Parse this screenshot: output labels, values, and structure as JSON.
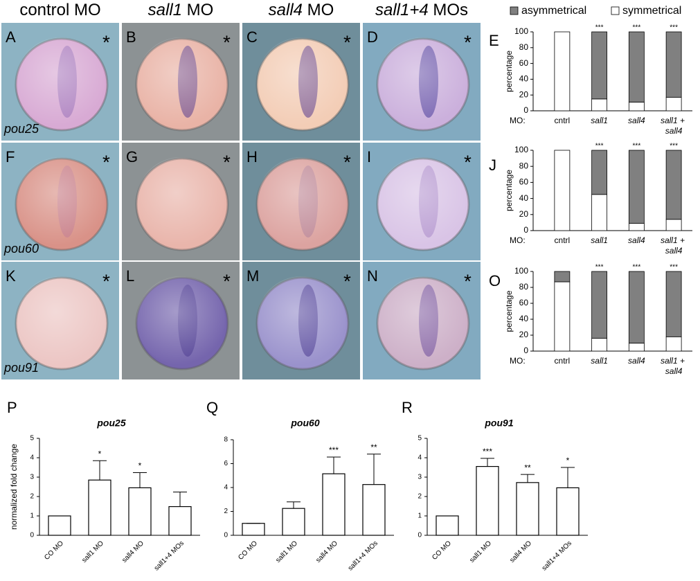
{
  "figure": {
    "columns": [
      {
        "text": "control MO"
      },
      {
        "italic": "sall1",
        "text": " MO"
      },
      {
        "italic": "sall4",
        "text": " MO"
      },
      {
        "italic": "sall1+4",
        "text": " MOs"
      }
    ],
    "rows": [
      {
        "gene": "pou25",
        "panels": [
          "A",
          "B",
          "C",
          "D"
        ]
      },
      {
        "gene": "pou60",
        "panels": [
          "F",
          "G",
          "H",
          "I"
        ]
      },
      {
        "gene": "pou91",
        "panels": [
          "K",
          "L",
          "M",
          "N"
        ]
      }
    ],
    "asterisk": "*"
  },
  "chart_data": [
    {
      "type": "stacked",
      "panel": "E",
      "ylabel": "percentage",
      "category_prefix": "MO:",
      "categories": [
        "cntrl",
        "sall1",
        "sall4",
        "sall1 + sall4"
      ],
      "annotations": [
        null,
        "***",
        "***",
        "***"
      ],
      "series": [
        {
          "name": "symmetrical",
          "color": "#ffffff",
          "values": [
            100,
            15,
            11,
            17
          ]
        },
        {
          "name": "asymmetrical",
          "color": "#808080",
          "values": [
            0,
            85,
            89,
            83
          ]
        }
      ],
      "ylim": [
        0,
        100
      ],
      "yticks": [
        0,
        20,
        40,
        60,
        80,
        100
      ]
    },
    {
      "type": "stacked",
      "panel": "J",
      "ylabel": "percentage",
      "category_prefix": "MO:",
      "categories": [
        "cntrl",
        "sall1",
        "sall4",
        "sall1 + sall4"
      ],
      "annotations": [
        null,
        "***",
        "***",
        "***"
      ],
      "series": [
        {
          "color": "#ffffff",
          "values": [
            100,
            45,
            9,
            14
          ]
        },
        {
          "color": "#808080",
          "values": [
            0,
            55,
            91,
            86
          ]
        }
      ],
      "ylim": [
        0,
        100
      ],
      "yticks": [
        0,
        20,
        40,
        60,
        80,
        100
      ]
    },
    {
      "type": "stacked",
      "panel": "O",
      "ylabel": "percentage",
      "category_prefix": "MO:",
      "categories": [
        "cntrl",
        "sall1",
        "sall4",
        "sall1 + sall4"
      ],
      "annotations": [
        null,
        "***",
        "***",
        "***"
      ],
      "series": [
        {
          "color": "#ffffff",
          "values": [
            87,
            16,
            10,
            18
          ]
        },
        {
          "color": "#808080",
          "values": [
            13,
            84,
            90,
            82
          ]
        }
      ],
      "ylim": [
        0,
        100
      ],
      "yticks": [
        0,
        20,
        40,
        60,
        80,
        100
      ]
    },
    {
      "type": "bar",
      "panel": "P",
      "title": "pou25",
      "ylabel": "normalized fold change",
      "categories": [
        "CO MO",
        "sall1 MO",
        "sall4 MO",
        "sall1+4 MOs"
      ],
      "values": [
        1,
        2.85,
        2.45,
        1.48
      ],
      "errors": [
        0,
        1.0,
        0.78,
        0.75
      ],
      "annotations": [
        null,
        "*",
        "*",
        null
      ],
      "color": "#ffffff",
      "ylim": [
        0,
        5
      ],
      "yticks": [
        0,
        1,
        2,
        3,
        4,
        5
      ]
    },
    {
      "type": "bar",
      "panel": "Q",
      "title": "pou60",
      "categories": [
        "CO MO",
        "sall1 MO",
        "sall4 MO",
        "sall1+4 MOs"
      ],
      "values": [
        1,
        2.25,
        5.15,
        4.25
      ],
      "errors": [
        0,
        0.55,
        1.4,
        2.55
      ],
      "annotations": [
        null,
        null,
        "***",
        "**"
      ],
      "color": "#ffffff",
      "ylim": [
        0,
        8
      ],
      "yticks": [
        0,
        2,
        4,
        6,
        8
      ]
    },
    {
      "type": "bar",
      "panel": "R",
      "title": "pou91",
      "categories": [
        "CO MO",
        "sall1 MO",
        "sall4 MO",
        "sall1+4 MOs"
      ],
      "values": [
        1,
        3.55,
        2.72,
        2.45
      ],
      "errors": [
        0,
        0.42,
        0.42,
        1.05
      ],
      "annotations": [
        null,
        "***",
        "**",
        "*"
      ],
      "color": "#ffffff",
      "ylim": [
        0,
        5
      ],
      "yticks": [
        0,
        1,
        2,
        3,
        4,
        5
      ]
    }
  ]
}
